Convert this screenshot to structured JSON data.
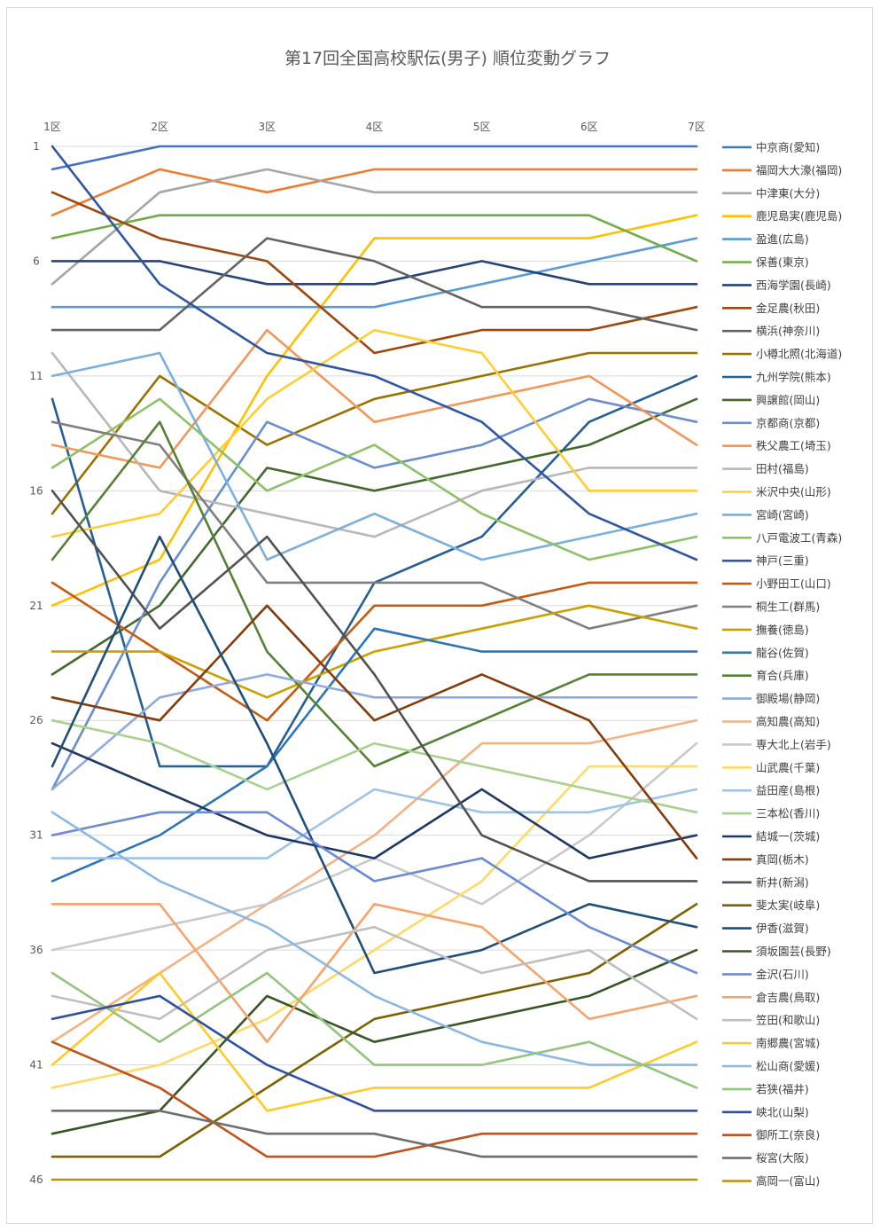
{
  "chart_data": {
    "type": "line",
    "title": "第17回全国高校駅伝(男子) 順位変動グラフ",
    "x": [
      "1区",
      "2区",
      "3区",
      "4区",
      "5区",
      "6区",
      "7区"
    ],
    "y_ticks": [
      "1",
      "6",
      "11",
      "16",
      "21",
      "26",
      "31",
      "36",
      "41",
      "46"
    ],
    "ylim": [
      1,
      46
    ],
    "y_reversed": true,
    "legend_position": "right",
    "series": [
      {
        "name": "中京商(愛知)",
        "color": "#4472c4",
        "values": [
          2,
          1,
          1,
          1,
          1,
          1,
          1
        ]
      },
      {
        "name": "福岡大大濠(福岡)",
        "color": "#ed7d31",
        "values": [
          4,
          2,
          3,
          2,
          2,
          2,
          2
        ]
      },
      {
        "name": "中津東(大分)",
        "color": "#a5a5a5",
        "values": [
          7,
          3,
          2,
          3,
          3,
          3,
          3
        ]
      },
      {
        "name": "鹿児島実(鹿児島)",
        "color": "#ffc000",
        "values": [
          21,
          19,
          11,
          5,
          5,
          5,
          4
        ]
      },
      {
        "name": "盈進(広島)",
        "color": "#5b9bd5",
        "values": [
          8,
          8,
          8,
          8,
          7,
          6,
          5
        ]
      },
      {
        "name": "保善(東京)",
        "color": "#70ad47",
        "values": [
          5,
          4,
          4,
          4,
          4,
          4,
          6
        ]
      },
      {
        "name": "西海学園(長崎)",
        "color": "#264478",
        "values": [
          6,
          6,
          7,
          7,
          6,
          7,
          7
        ]
      },
      {
        "name": "金足農(秋田)",
        "color": "#9e480e",
        "values": [
          3,
          5,
          6,
          10,
          9,
          9,
          8
        ]
      },
      {
        "name": "横浜(神奈川)",
        "color": "#636363",
        "values": [
          9,
          9,
          5,
          6,
          8,
          8,
          9
        ]
      },
      {
        "name": "小樽北照(北海道)",
        "color": "#997300",
        "values": [
          17,
          11,
          14,
          12,
          11,
          10,
          10
        ]
      },
      {
        "name": "九州学院(熊本)",
        "color": "#255e91",
        "values": [
          12,
          28,
          28,
          20,
          18,
          13,
          11
        ]
      },
      {
        "name": "興譲館(岡山)",
        "color": "#43682b",
        "values": [
          24,
          21,
          15,
          16,
          15,
          14,
          12
        ]
      },
      {
        "name": "京都商(京都)",
        "color": "#698ed0",
        "values": [
          29,
          20,
          13,
          15,
          14,
          12,
          13
        ]
      },
      {
        "name": "秩父農工(埼玉)",
        "color": "#f1975a",
        "values": [
          14,
          15,
          9,
          13,
          12,
          11,
          14
        ]
      },
      {
        "name": "田村(福島)",
        "color": "#b7b7b7",
        "values": [
          10,
          16,
          17,
          18,
          16,
          15,
          15
        ]
      },
      {
        "name": "米沢中央(山形)",
        "color": "#ffcd33",
        "values": [
          18,
          17,
          12,
          9,
          10,
          16,
          16
        ]
      },
      {
        "name": "宮崎(宮崎)",
        "color": "#7cafdd",
        "values": [
          11,
          10,
          19,
          17,
          19,
          18,
          17
        ]
      },
      {
        "name": "八戸電波工(青森)",
        "color": "#8cc168",
        "values": [
          15,
          12,
          16,
          14,
          17,
          19,
          18
        ]
      },
      {
        "name": "神戸(三重)",
        "color": "#2f56a0",
        "values": [
          1,
          7,
          10,
          11,
          13,
          17,
          19
        ]
      },
      {
        "name": "小野田工(山口)",
        "color": "#c55a11",
        "values": [
          20,
          23,
          26,
          21,
          21,
          20,
          20
        ]
      },
      {
        "name": "桐生工(群馬)",
        "color": "#7f7f7f",
        "values": [
          13,
          14,
          20,
          20,
          20,
          22,
          21
        ]
      },
      {
        "name": "撫養(徳島)",
        "color": "#c9a000",
        "values": [
          23,
          23,
          25,
          23,
          22,
          21,
          22
        ]
      },
      {
        "name": "龍谷(佐賀)",
        "color": "#2e75b6",
        "values": [
          33,
          31,
          28,
          22,
          23,
          23,
          23
        ]
      },
      {
        "name": "育合(兵庫)",
        "color": "#548235",
        "values": [
          19,
          13,
          23,
          28,
          26,
          24,
          24
        ]
      },
      {
        "name": "御殿場(静岡)",
        "color": "#8faadc",
        "values": [
          29,
          25,
          24,
          25,
          25,
          25,
          25
        ]
      },
      {
        "name": "高知農(高知)",
        "color": "#f4b183",
        "values": [
          40,
          37,
          34,
          31,
          27,
          27,
          26
        ]
      },
      {
        "name": "専大北上(岩手)",
        "color": "#c9c9c9",
        "values": [
          36,
          35,
          34,
          32,
          34,
          31,
          27
        ]
      },
      {
        "name": "山武農(千葉)",
        "color": "#ffd966",
        "values": [
          42,
          41,
          39,
          36,
          33,
          28,
          28
        ]
      },
      {
        "name": "益田産(島根)",
        "color": "#9dc3e6",
        "values": [
          32,
          32,
          32,
          29,
          30,
          30,
          29
        ]
      },
      {
        "name": "三本松(香川)",
        "color": "#a9d18e",
        "values": [
          26,
          27,
          29,
          27,
          28,
          29,
          30
        ]
      },
      {
        "name": "結城一(茨城)",
        "color": "#203864",
        "values": [
          27,
          29,
          31,
          32,
          29,
          32,
          31
        ]
      },
      {
        "name": "真岡(栃木)",
        "color": "#843c0c",
        "values": [
          25,
          26,
          21,
          26,
          24,
          26,
          32
        ]
      },
      {
        "name": "新井(新潟)",
        "color": "#525252",
        "values": [
          16,
          22,
          18,
          24,
          31,
          33,
          33
        ]
      },
      {
        "name": "斐太実(岐阜)",
        "color": "#7f6000",
        "values": [
          45,
          45,
          42,
          39,
          38,
          37,
          34
        ]
      },
      {
        "name": "伊香(滋賀)",
        "color": "#1f4e79",
        "values": [
          28,
          18,
          27,
          37,
          36,
          34,
          35
        ]
      },
      {
        "name": "須坂園芸(長野)",
        "color": "#375623",
        "values": [
          44,
          43,
          38,
          40,
          39,
          38,
          36
        ]
      },
      {
        "name": "金沢(石川)",
        "color": "#6b8bd4",
        "values": [
          31,
          30,
          30,
          33,
          32,
          35,
          37
        ]
      },
      {
        "name": "倉吉農(鳥取)",
        "color": "#f4a46b",
        "values": [
          34,
          34,
          40,
          34,
          35,
          39,
          38
        ]
      },
      {
        "name": "笠田(和歌山)",
        "color": "#bfbfbf",
        "values": [
          38,
          39,
          36,
          35,
          37,
          36,
          39
        ]
      },
      {
        "name": "南郷農(宮城)",
        "color": "#ffca28",
        "values": [
          41,
          37,
          43,
          42,
          42,
          42,
          40
        ]
      },
      {
        "name": "松山商(愛媛)",
        "color": "#8ab8e3",
        "values": [
          30,
          33,
          35,
          38,
          40,
          41,
          41
        ]
      },
      {
        "name": "若狭(福井)",
        "color": "#93c47d",
        "values": [
          37,
          40,
          37,
          41,
          41,
          40,
          42
        ]
      },
      {
        "name": "峡北(山梨)",
        "color": "#2f4f9f",
        "values": [
          39,
          38,
          41,
          43,
          43,
          43,
          43
        ]
      },
      {
        "name": "御所工(奈良)",
        "color": "#c0521a",
        "values": [
          40,
          42,
          45,
          45,
          44,
          44,
          44
        ]
      },
      {
        "name": "桜宮(大阪)",
        "color": "#6f6f6f",
        "values": [
          43,
          43,
          44,
          44,
          45,
          45,
          45
        ]
      },
      {
        "name": "高岡一(富山)",
        "color": "#b8930a",
        "values": [
          46,
          46,
          46,
          46,
          46,
          46,
          46
        ]
      }
    ]
  }
}
